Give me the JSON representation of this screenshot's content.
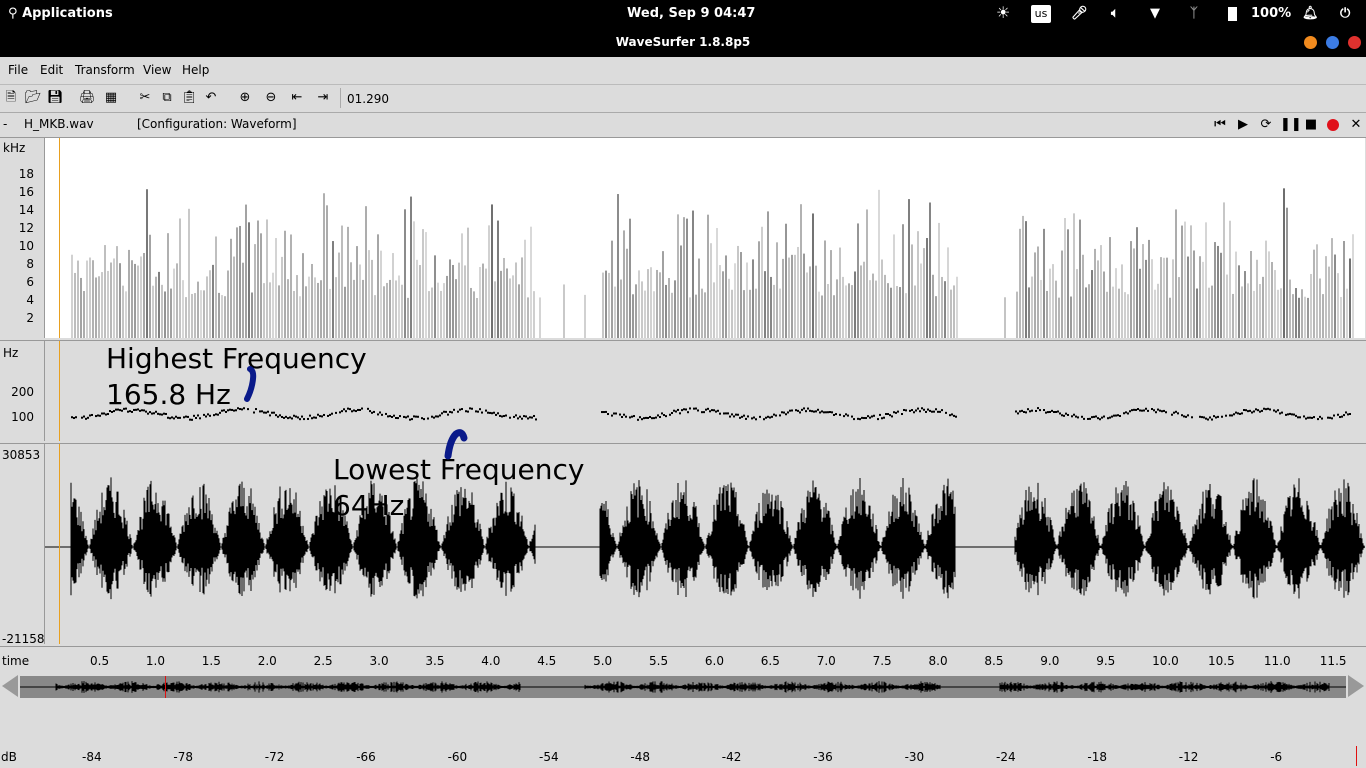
{
  "system_bar": {
    "apps_label": "Applications",
    "datetime": "Wed, Sep  9    04:47",
    "keyboard": "us",
    "battery": "100%",
    "icons": [
      "brightness-icon",
      "keyboard-layout-icon",
      "microphone-icon",
      "volume-icon",
      "wifi-icon",
      "bluetooth-icon",
      "battery-icon",
      "notifications-icon",
      "power-icon"
    ]
  },
  "window": {
    "title": "WaveSurfer 1.8.8p5",
    "controls": {
      "minimize": "#f28b1e",
      "maximize": "#3c7ce4",
      "close": "#e0312e"
    }
  },
  "menu": [
    "File",
    "Edit",
    "Transform",
    "View",
    "Help"
  ],
  "toolbar": {
    "time_display": "01.290",
    "tools": [
      "new-file-icon",
      "open-file-icon",
      "save-icon",
      "print-icon",
      "properties-icon",
      "cut-icon",
      "copy-icon",
      "paste-icon",
      "undo-icon",
      "zoom-in-icon",
      "zoom-out-icon",
      "zoom-fit-icon",
      "zoom-selection-icon"
    ]
  },
  "file_line": {
    "dash": "-",
    "filename": "H_MKB.wav",
    "config": "[Configuration: Waveform]",
    "transport": [
      "skip-to-start-icon",
      "play-icon",
      "loop-play-icon",
      "pause-icon",
      "stop-icon",
      "record-icon",
      "close-icon"
    ]
  },
  "spectrogram": {
    "unit": "kHz",
    "ticks": [
      "18",
      "16",
      "14",
      "12",
      "10",
      "8",
      "6",
      "4",
      "2"
    ]
  },
  "pitch": {
    "unit": "Hz",
    "ticks": [
      "200",
      "100"
    ],
    "annotation_high": [
      "Highest Frequency",
      "165.8 Hz"
    ],
    "annotation_low": [
      "Lowest Frequency",
      "64Hz"
    ]
  },
  "waveform": {
    "max": "30853",
    "min": "-21158"
  },
  "time_axis": {
    "label": "time",
    "ticks": [
      "0.5",
      "1.0",
      "1.5",
      "2.0",
      "2.5",
      "3.0",
      "3.5",
      "4.0",
      "4.5",
      "5.0",
      "5.5",
      "6.0",
      "6.5",
      "7.0",
      "7.5",
      "8.0",
      "8.5",
      "9.0",
      "9.5",
      "10.0",
      "10.5",
      "11.0",
      "11.5"
    ]
  },
  "db_axis": {
    "label": "dB",
    "ticks": [
      "-84",
      "-78",
      "-72",
      "-66",
      "-60",
      "-54",
      "-48",
      "-42",
      "-36",
      "-30",
      "-24",
      "-18",
      "-12",
      "-6"
    ]
  }
}
